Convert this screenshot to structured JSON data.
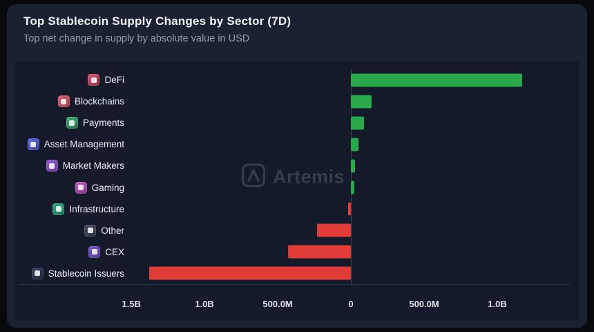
{
  "header": {
    "title": "Top Stablecoin Supply Changes by Sector (7D)",
    "subtitle": "Top net change in supply by absolute value in USD"
  },
  "watermark": {
    "text": "Artemis"
  },
  "colors": {
    "positive_bar": "#29a94c",
    "negative_bar": "#e23c36",
    "card_bg": "#1a2130",
    "panel_bg": "#141a2a"
  },
  "chart_data": {
    "type": "bar",
    "orientation": "horizontal",
    "title": "Top Stablecoin Supply Changes by Sector (7D)",
    "subtitle": "Top net change in supply by absolute value in USD",
    "xlabel": "",
    "ylabel": "",
    "unit": "USD",
    "categories": [
      "DeFi",
      "Blockchains",
      "Payments",
      "Asset Management",
      "Market Makers",
      "Gaming",
      "Infrastructure",
      "Other",
      "CEX",
      "Stablecoin Issuers"
    ],
    "values_musd": [
      1170,
      140,
      88,
      50,
      26,
      24,
      -18,
      -232,
      -430,
      -1380
    ],
    "axis": {
      "min_musd": -1510,
      "max_musd": 1500,
      "ticks_musd": [
        -1500,
        -1000,
        -500,
        0,
        500,
        1000
      ],
      "tick_labels": [
        "1.5B",
        "1.0B",
        "500.0M",
        "0",
        "500.0M",
        "1.0B"
      ]
    },
    "colors": {
      "positive": "#29a94c",
      "negative": "#e23c36"
    },
    "icons": [
      {
        "name": "defi-icon",
        "color": "#d94f6a"
      },
      {
        "name": "blockchains-icon",
        "color": "#e2606e"
      },
      {
        "name": "payments-icon",
        "color": "#3fae7a"
      },
      {
        "name": "asset-management-icon",
        "color": "#5868e8"
      },
      {
        "name": "market-makers-icon",
        "color": "#9a5ae0"
      },
      {
        "name": "gaming-icon",
        "color": "#c957c9"
      },
      {
        "name": "infrastructure-icon",
        "color": "#2fae84"
      },
      {
        "name": "other-icon",
        "color": "#444d5f"
      },
      {
        "name": "cex-icon",
        "color": "#7e57d6"
      },
      {
        "name": "stablecoin-issuers-icon",
        "color": "#32405f"
      }
    ],
    "legend": null,
    "grid": false
  }
}
